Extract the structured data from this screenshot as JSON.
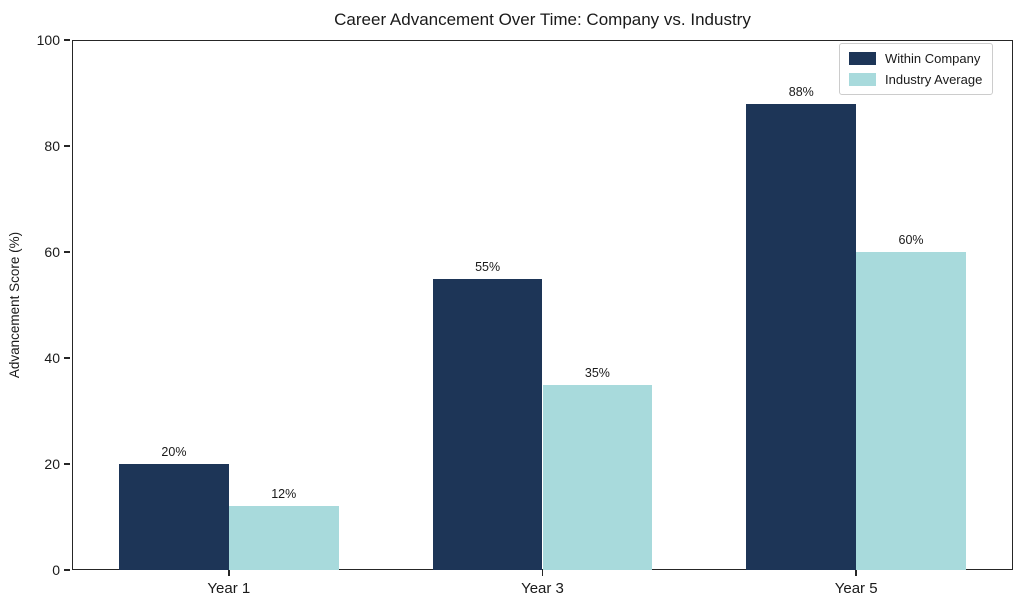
{
  "chart_data": {
    "type": "bar",
    "title": "Career Advancement Over Time: Company vs. Industry",
    "ylabel": "Advancement Score (%)",
    "xlabel": "",
    "categories": [
      "Year 1",
      "Year 3",
      "Year 5"
    ],
    "series": [
      {
        "name": "Within Company",
        "color": "#1d3557",
        "values": [
          20,
          55,
          88
        ],
        "labels": [
          "20%",
          "55%",
          "88%"
        ]
      },
      {
        "name": "Industry Average",
        "color": "#a8dadc",
        "values": [
          12,
          35,
          60
        ],
        "labels": [
          "12%",
          "35%",
          "60%"
        ]
      }
    ],
    "ylim": [
      0,
      100
    ],
    "yticks": [
      0,
      20,
      40,
      60,
      80,
      100
    ],
    "xlim": [
      -0.5,
      2.5
    ],
    "bar_width": 0.35,
    "grid": false,
    "legend_position": "upper right"
  },
  "colors": {
    "text": "#1a1a1a",
    "spine": "#262626",
    "legend_border": "#cccccc",
    "background": "#ffffff"
  }
}
